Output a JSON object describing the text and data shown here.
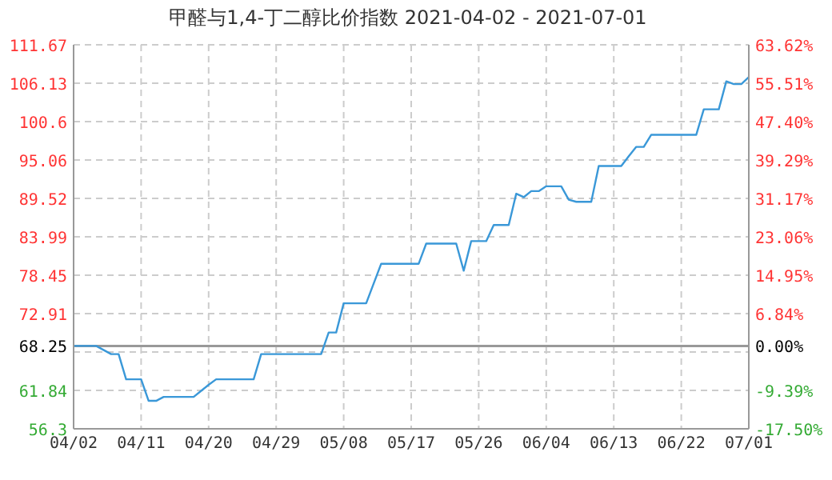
{
  "chart_data": {
    "type": "line",
    "title": "甲醛与1,4-丁二醇比价指数 2021-04-02 - 2021-07-01",
    "x": [
      "2021-04-02",
      "2021-04-05",
      "2021-04-07",
      "2021-04-08",
      "2021-04-09",
      "2021-04-11",
      "2021-04-12",
      "2021-04-13",
      "2021-04-14",
      "2021-04-18",
      "2021-04-20",
      "2021-04-21",
      "2021-04-26",
      "2021-04-27",
      "2021-05-05",
      "2021-05-06",
      "2021-05-07",
      "2021-05-08",
      "2021-05-11",
      "2021-05-13",
      "2021-05-18",
      "2021-05-19",
      "2021-05-23",
      "2021-05-24",
      "2021-05-25",
      "2021-05-27",
      "2021-05-28",
      "2021-05-30",
      "2021-05-31",
      "2021-06-01",
      "2021-06-02",
      "2021-06-03",
      "2021-06-04",
      "2021-06-06",
      "2021-06-07",
      "2021-06-08",
      "2021-06-10",
      "2021-06-11",
      "2021-06-14",
      "2021-06-15",
      "2021-06-16",
      "2021-06-17",
      "2021-06-18",
      "2021-06-24",
      "2021-06-25",
      "2021-06-27",
      "2021-06-28",
      "2021-06-29",
      "2021-06-30",
      "2021-07-01"
    ],
    "series": [
      {
        "color": "#3a98d8",
        "values": [
          68.25,
          68.25,
          67.07,
          67.07,
          63.44,
          63.44,
          60.33,
          60.33,
          60.9,
          60.9,
          62.65,
          63.44,
          63.44,
          67.07,
          67.07,
          70.19,
          70.19,
          74.4,
          74.4,
          80.1,
          80.1,
          83.0,
          83.0,
          79.1,
          83.36,
          83.36,
          85.69,
          85.69,
          90.2,
          89.7,
          90.57,
          90.57,
          91.27,
          91.27,
          89.34,
          89.03,
          89.03,
          94.2,
          94.2,
          95.6,
          96.95,
          96.95,
          98.7,
          98.7,
          102.37,
          102.37,
          106.4,
          106.0,
          106.0,
          107.0
        ]
      }
    ],
    "xlim": [
      "2021-04-02",
      "2021-07-01"
    ],
    "xticks": [
      {
        "value": "2021-04-02",
        "label": "04/02"
      },
      {
        "value": "2021-04-11",
        "label": "04/11"
      },
      {
        "value": "2021-04-20",
        "label": "04/20"
      },
      {
        "value": "2021-04-29",
        "label": "04/29"
      },
      {
        "value": "2021-05-08",
        "label": "05/08"
      },
      {
        "value": "2021-05-17",
        "label": "05/17"
      },
      {
        "value": "2021-05-26",
        "label": "05/26"
      },
      {
        "value": "2021-06-04",
        "label": "06/04"
      },
      {
        "value": "2021-06-13",
        "label": "06/13"
      },
      {
        "value": "2021-06-22",
        "label": "06/22"
      },
      {
        "value": "2021-07-01",
        "label": "07/01"
      }
    ],
    "ylim": [
      56.3,
      111.67
    ],
    "yticks": [
      56.3,
      61.84,
      {
        "value": 67.38,
        "label": null
      },
      68.25,
      72.91,
      78.45,
      83.99,
      89.52,
      95.06,
      100.6,
      106.13,
      111.67
    ],
    "y2lim": [
      -17.5,
      63.62
    ],
    "y2ticks": [
      {
        "value": -17.5,
        "label": "-17.50%"
      },
      {
        "value": -9.39,
        "label": "-9.39%"
      },
      {
        "value": 0,
        "label": "0.00%"
      },
      {
        "value": 6.84,
        "label": "6.84%"
      },
      {
        "value": 14.95,
        "label": "14.95%"
      },
      {
        "value": 23.06,
        "label": "23.06%"
      },
      {
        "value": 31.17,
        "label": "31.17%"
      },
      {
        "value": 39.29,
        "label": "39.29%"
      },
      {
        "value": 47.4,
        "label": "47.40%"
      },
      {
        "value": 55.51,
        "label": "55.51%"
      },
      {
        "value": 63.62,
        "label": "63.62%"
      }
    ],
    "ref_lines": [
      {
        "axis": "y",
        "value": 68.25,
        "color": "#999999",
        "line_style": "solid"
      }
    ],
    "grid": true,
    "marker": "none",
    "line_style": "solid",
    "legend": false
  }
}
